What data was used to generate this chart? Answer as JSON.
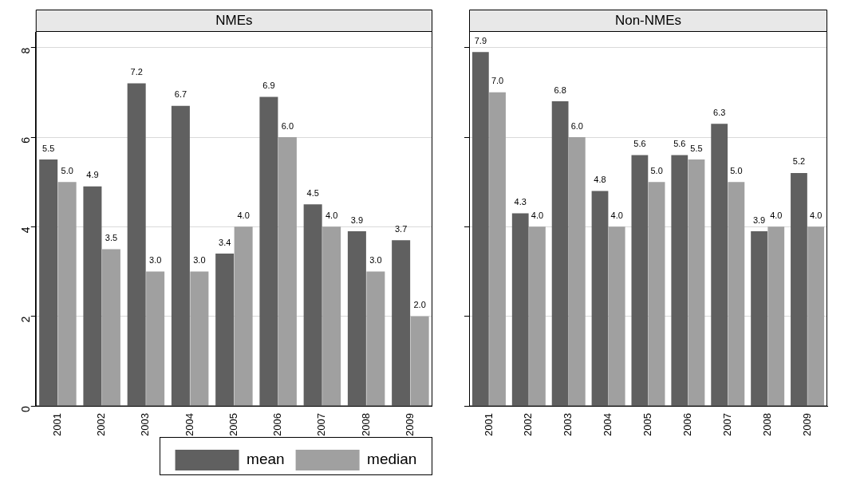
{
  "chart_data": [
    {
      "type": "bar",
      "title": "NMEs",
      "categories": [
        "2001",
        "2002",
        "2003",
        "2004",
        "2005",
        "2006",
        "2007",
        "2008",
        "2009"
      ],
      "series": [
        {
          "name": "mean",
          "color": "#606060",
          "values": [
            5.5,
            4.9,
            7.2,
            6.7,
            3.4,
            6.9,
            4.5,
            3.9,
            3.7
          ],
          "value_labels": [
            "5.5",
            "4.9",
            "7.2",
            "6.7",
            "3.4",
            "6.9",
            "4.5",
            "3.9",
            "3.7"
          ]
        },
        {
          "name": "median",
          "color": "#a0a0a0",
          "values": [
            5.0,
            3.5,
            3.0,
            3.0,
            4.0,
            6.0,
            4.0,
            3.0,
            2.0
          ],
          "value_labels": [
            "5.0",
            "3.5",
            "3.0",
            "3.0",
            "4.0",
            "6.0",
            "4.0",
            "3.0",
            "2.0"
          ]
        }
      ],
      "ylim": [
        0,
        8.35
      ],
      "yticks": [
        0,
        2,
        4,
        6,
        8
      ],
      "grid": "y",
      "legend": "bottom"
    },
    {
      "type": "bar",
      "title": "Non-NMEs",
      "categories": [
        "2001",
        "2002",
        "2003",
        "2004",
        "2005",
        "2006",
        "2007",
        "2008",
        "2009"
      ],
      "series": [
        {
          "color": "#606060",
          "values": [
            7.9,
            4.3,
            6.8,
            4.8,
            5.6,
            5.6,
            6.3,
            3.9,
            5.2
          ],
          "value_labels": [
            "7.9",
            "4.3",
            "6.8",
            "4.8",
            "5.6",
            "5.6",
            "6.3",
            "3.9",
            "5.2"
          ]
        },
        {
          "color": "#a0a0a0",
          "values": [
            7.0,
            4.0,
            6.0,
            4.0,
            5.0,
            5.5,
            5.0,
            4.0,
            4.0
          ],
          "value_labels": [
            "7.0",
            "4.0",
            "6.0",
            "4.0",
            "5.0",
            "5.5",
            "5.0",
            "4.0",
            "4.0"
          ]
        }
      ],
      "ylim": [
        0,
        8.35
      ],
      "yticks": [
        0,
        2,
        4,
        6,
        8
      ],
      "grid": "y",
      "tick_labels": "x"
    }
  ]
}
